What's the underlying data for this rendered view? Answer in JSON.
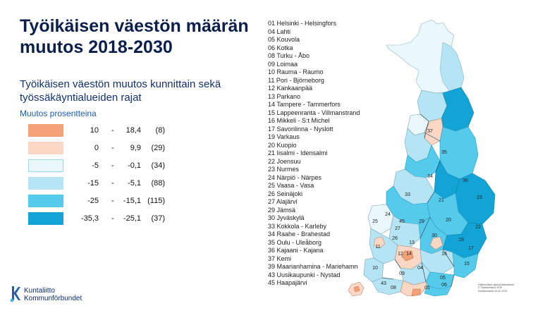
{
  "title": "Työikäisen väestön määrän muutos 2018-2030",
  "subtitle": "Työikäisen väestön muutos kunnittain sekä työssäkäyntialueiden rajat",
  "legend": {
    "title": "Muutos prosentteina",
    "rows": [
      {
        "min": "10",
        "dash": "-",
        "max": "18,4",
        "count": "(8)",
        "color": "#f4a178"
      },
      {
        "min": "0",
        "dash": "-",
        "max": "9,9",
        "count": "(29)",
        "color": "#fbd7c4"
      },
      {
        "min": "-5",
        "dash": "-",
        "max": "-0,1",
        "count": "(34)",
        "color": "#eaf8fc"
      },
      {
        "min": "-15",
        "dash": "-",
        "max": "-5,1",
        "count": "(88)",
        "color": "#b5e5f4"
      },
      {
        "min": "-25",
        "dash": "-",
        "max": "-15,1",
        "count": "(115)",
        "color": "#55cbec"
      },
      {
        "min": "-35,3",
        "dash": "-",
        "max": "-25,1",
        "count": "(37)",
        "color": "#13a4d6"
      }
    ]
  },
  "regions": [
    "01 Helsinki - Helsingfors",
    "04 Lahti",
    "05 Kouvola",
    "06 Kotka",
    "08 Turku - Åbo",
    "09 Loimaa",
    "10 Rauma - Raumo",
    "11 Pori - Björneborg",
    "12 Kankaanpää",
    "13 Parkano",
    "14 Tampere - Tammerfors",
    "15 Lappeenranta - Villmanstrand",
    "16 Mikkeli - S:t Michel",
    "17 Savonlinna - Nyslott",
    "19 Varkaus",
    "20 Kuopio",
    "21 Iisalmi - Idensalmi",
    "22 Joensuu",
    "23 Nurmes",
    "24 Närpiö - Närpes",
    "25 Vaasa - Vasa",
    "26 Seinäjoki",
    "27 Alajärvi",
    "29 Jämsä",
    "30 Jyväskylä",
    "33 Kokkola - Karleby",
    "34 Raahe - Brahestad",
    "35 Oulu - Uleåborg",
    "36 Kajaani - Kajana",
    "37 Kemi",
    "39 Maarianhamina - Mariehamn",
    "43 Uusikaupunki - Nystad",
    "45 Haapajärvi"
  ],
  "map_labels": [
    "37",
    "35",
    "34",
    "36",
    "33",
    "21",
    "23",
    "24",
    "25",
    "29",
    "27",
    "20",
    "22",
    "26",
    "45",
    "30",
    "17",
    "16",
    "13",
    "19",
    "12",
    "14",
    "11",
    "04",
    "05",
    "10",
    "09",
    "15",
    "06",
    "43",
    "08",
    "01"
  ],
  "credit": [
    "Hallinnolliset rajat ja tilastotiedot",
    "© Tilastokeskus 2019",
    "Karttatuotanto KLHL 2019"
  ],
  "logo": {
    "line1": "Kuntaliitto",
    "line2": "Kommunförbundet"
  },
  "colors": {
    "title": "#0b1f4a",
    "legend_title": "#1b5eb1",
    "logo": "#0b2b6e"
  }
}
